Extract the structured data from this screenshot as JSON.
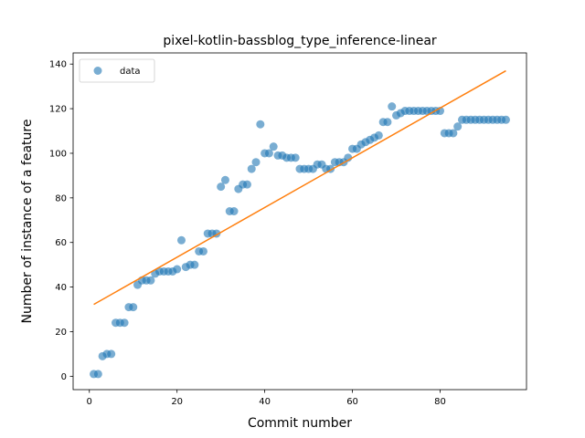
{
  "chart_data": {
    "type": "scatter",
    "title": "pixel-kotlin-bassblog_type_inference-linear",
    "xlabel": "Commit number",
    "ylabel": "Number of instance of a feature",
    "xlim": [
      -3.7,
      99.7
    ],
    "ylim": [
      -6.0,
      145.0
    ],
    "xticks": [
      0,
      20,
      40,
      60,
      80
    ],
    "yticks": [
      0,
      20,
      40,
      60,
      80,
      100,
      120,
      140
    ],
    "legend_position": "top-left",
    "colors": {
      "data": "#1f77b4",
      "fit": "#ff7f0e"
    },
    "series": [
      {
        "name": "data",
        "kind": "points",
        "x": [
          1,
          2,
          3,
          4,
          5,
          6,
          7,
          8,
          9,
          10,
          11,
          12,
          13,
          14,
          15,
          16,
          17,
          18,
          19,
          20,
          21,
          22,
          23,
          24,
          25,
          26,
          27,
          28,
          29,
          30,
          31,
          32,
          33,
          34,
          35,
          36,
          37,
          38,
          39,
          40,
          41,
          42,
          43,
          44,
          45,
          46,
          47,
          48,
          49,
          50,
          51,
          52,
          53,
          54,
          55,
          56,
          57,
          58,
          59,
          60,
          61,
          62,
          63,
          64,
          65,
          66,
          67,
          68,
          69,
          70,
          71,
          72,
          73,
          74,
          75,
          76,
          77,
          78,
          79,
          80,
          81,
          82,
          83,
          84,
          85,
          86,
          87,
          88,
          89,
          90,
          91,
          92,
          93,
          94,
          95
        ],
        "y": [
          1,
          1,
          9,
          10,
          10,
          24,
          24,
          24,
          31,
          31,
          41,
          43,
          43,
          43,
          46,
          47,
          47,
          47,
          47,
          48,
          61,
          49,
          50,
          50,
          56,
          56,
          64,
          64,
          64,
          85,
          88,
          74,
          74,
          84,
          86,
          86,
          93,
          96,
          113,
          100,
          100,
          103,
          99,
          99,
          98,
          98,
          98,
          93,
          93,
          93,
          93,
          95,
          95,
          93,
          93,
          96,
          96,
          96,
          98,
          102,
          102,
          104,
          105,
          106,
          107,
          108,
          114,
          114,
          121,
          117,
          118,
          119,
          119,
          119,
          119,
          119,
          119,
          119,
          119,
          119,
          109,
          109,
          109,
          112,
          115,
          115,
          115,
          115,
          115,
          115,
          115,
          115,
          115,
          115,
          115
        ]
      },
      {
        "kind": "line",
        "x": [
          1,
          95
        ],
        "y": [
          32.2,
          137.0
        ]
      }
    ]
  }
}
